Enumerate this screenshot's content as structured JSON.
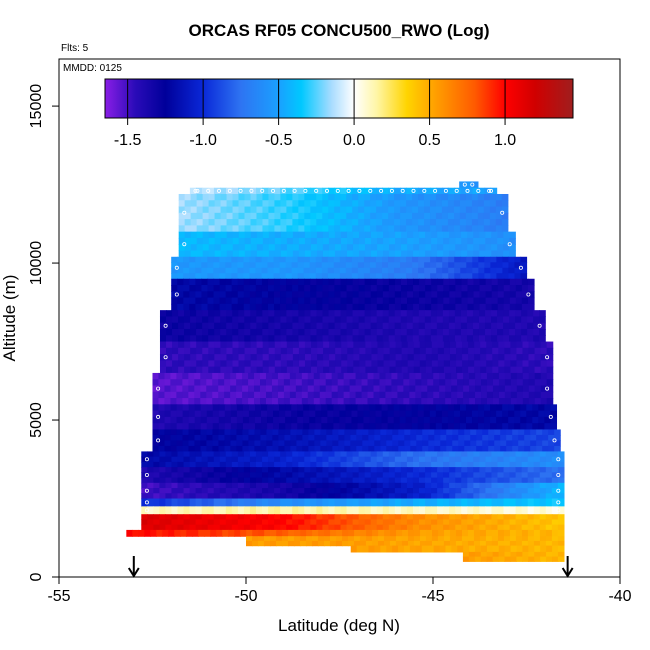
{
  "chart_data": {
    "type": "heatmap",
    "title": "ORCAS RF05 CONCU500_RWO (Log)",
    "xlabel": "Latitude (deg N)",
    "ylabel": "Altitude (m)",
    "xlim": [
      -55,
      -40
    ],
    "ylim": [
      0,
      16500
    ],
    "xticks": [
      -55,
      -50,
      -45,
      -40
    ],
    "xtick_labels": [
      "-55",
      "-50",
      "-45",
      "-40"
    ],
    "yticks": [
      0,
      5000,
      10000,
      15000
    ],
    "ytick_labels": [
      "0",
      "5000",
      "10000",
      "15000"
    ],
    "annotations": {
      "flights": "Flts: 5",
      "date": "MMDD: 0125"
    },
    "colorbar": {
      "range": [
        -1.65,
        1.45
      ],
      "ticks": [
        -1.5,
        -1.0,
        -0.5,
        0.0,
        0.5,
        1.0
      ],
      "tick_labels": [
        "-1.5",
        "-1.0",
        "-0.5",
        "0.0",
        "0.5",
        "1.0"
      ],
      "stops": [
        {
          "v": -1.65,
          "c": "#8a1ee6"
        },
        {
          "v": -1.45,
          "c": "#2a0bb8"
        },
        {
          "v": -1.25,
          "c": "#00009a"
        },
        {
          "v": -1.0,
          "c": "#0a28d8"
        },
        {
          "v": -0.75,
          "c": "#2e74f2"
        },
        {
          "v": -0.5,
          "c": "#1aa0ff"
        },
        {
          "v": -0.35,
          "c": "#00c8ff"
        },
        {
          "v": -0.15,
          "c": "#a8dcff"
        },
        {
          "v": 0.0,
          "c": "#ffffff"
        },
        {
          "v": 0.15,
          "c": "#fff6a6"
        },
        {
          "v": 0.35,
          "c": "#ffd400"
        },
        {
          "v": 0.55,
          "c": "#ff9c00"
        },
        {
          "v": 0.8,
          "c": "#ff5a00"
        },
        {
          "v": 1.0,
          "c": "#ff0000"
        },
        {
          "v": 1.2,
          "c": "#d00000"
        },
        {
          "v": 1.45,
          "c": "#a01e1e"
        }
      ]
    },
    "layers": [
      {
        "alt": [
          12400,
          12600
        ],
        "lat": [
          -44.3,
          -43.8
        ],
        "values": [
          -0.55,
          -0.6
        ]
      },
      {
        "alt": [
          12200,
          12400
        ],
        "lat": [
          -51.5,
          -43.3
        ],
        "values": [
          -0.1,
          -0.25,
          -0.45,
          -0.5
        ]
      },
      {
        "alt": [
          11000,
          12200
        ],
        "lat": [
          -51.8,
          -43.0
        ],
        "values": [
          -0.15,
          -0.3,
          -0.55,
          -0.7
        ]
      },
      {
        "alt": [
          10200,
          11000
        ],
        "lat": [
          -51.8,
          -42.8
        ],
        "values": [
          -0.4,
          -0.45,
          -0.5,
          -0.6
        ]
      },
      {
        "alt": [
          9500,
          10200
        ],
        "lat": [
          -52.0,
          -42.5
        ],
        "values": [
          -0.55,
          -0.55,
          -0.7,
          -1.1
        ]
      },
      {
        "alt": [
          8500,
          9500
        ],
        "lat": [
          -52.0,
          -42.3
        ],
        "values": [
          -1.2,
          -1.25,
          -1.3,
          -1.35
        ]
      },
      {
        "alt": [
          7500,
          8500
        ],
        "lat": [
          -52.3,
          -42.0
        ],
        "values": [
          -1.3,
          -1.35,
          -1.4,
          -1.4
        ]
      },
      {
        "alt": [
          6500,
          7500
        ],
        "lat": [
          -52.3,
          -41.8
        ],
        "values": [
          -1.45,
          -1.45,
          -1.4,
          -1.45
        ]
      },
      {
        "alt": [
          5500,
          6500
        ],
        "lat": [
          -52.5,
          -41.8
        ],
        "values": [
          -1.55,
          -1.5,
          -1.45,
          -1.4
        ]
      },
      {
        "alt": [
          4700,
          5500
        ],
        "lat": [
          -52.5,
          -41.7
        ],
        "values": [
          -1.4,
          -1.3,
          -1.25,
          -1.2
        ]
      },
      {
        "alt": [
          4000,
          4700
        ],
        "lat": [
          -52.5,
          -41.6
        ],
        "values": [
          -1.25,
          -1.15,
          -1.0,
          -0.9
        ]
      },
      {
        "alt": [
          3500,
          4000
        ],
        "lat": [
          -52.8,
          -41.5
        ],
        "values": [
          -1.2,
          -1.05,
          -0.75,
          -0.6
        ]
      },
      {
        "alt": [
          3000,
          3500
        ],
        "lat": [
          -52.8,
          -41.5
        ],
        "values": [
          -1.4,
          -1.2,
          -1.0,
          -0.75
        ]
      },
      {
        "alt": [
          2500,
          3000
        ],
        "lat": [
          -52.8,
          -41.5
        ],
        "values": [
          -1.5,
          -1.35,
          -1.05,
          -0.4
        ]
      },
      {
        "alt": [
          2250,
          2500
        ],
        "lat": [
          -52.8,
          -41.5
        ],
        "values": [
          -1.0,
          -0.6,
          -0.45,
          -0.35
        ]
      },
      {
        "alt": [
          2000,
          2250
        ],
        "lat": [
          -52.8,
          -41.5
        ],
        "values": [
          0.1,
          0.15,
          0.1,
          0.05
        ]
      },
      {
        "alt": [
          1500,
          2000
        ],
        "lat": [
          -52.8,
          -41.5
        ],
        "values": [
          1.15,
          1.0,
          0.6,
          0.4
        ]
      },
      {
        "alt": [
          1300,
          1500
        ],
        "lat": [
          -53.2,
          -41.5
        ],
        "values": [
          1.0,
          0.8,
          0.55,
          0.45
        ]
      },
      {
        "alt": [
          1000,
          1300
        ],
        "lat": [
          -50.0,
          -41.5
        ],
        "values": [
          0.55,
          0.55,
          0.5,
          0.45
        ]
      },
      {
        "alt": [
          800,
          1000
        ],
        "lat": [
          -47.2,
          -41.5
        ],
        "values": [
          0.55,
          0.5,
          0.45
        ]
      },
      {
        "alt": [
          500,
          800
        ],
        "lat": [
          -44.2,
          -41.5
        ],
        "values": [
          0.55,
          0.45
        ]
      }
    ],
    "markers": [
      -53.0,
      -41.4
    ]
  }
}
